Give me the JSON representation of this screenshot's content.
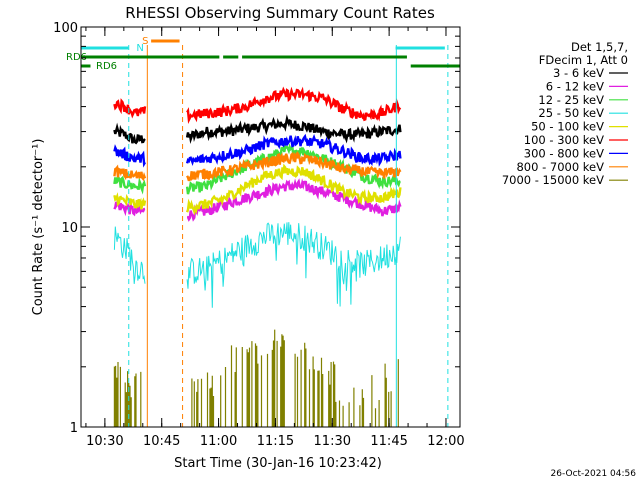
{
  "chart_data": {
    "type": "line",
    "title": "RHESSI Observing Summary Count Rates",
    "xlabel": "Start Time (30-Jan-16 10:23:42)",
    "ylabel": "Count Rate (s⁻¹ detector⁻¹)",
    "y_scale": "log",
    "ylim": [
      1,
      100
    ],
    "xlim_minutes": [
      0,
      100
    ],
    "x_tick_labels": [
      "10:30",
      "10:45",
      "11:00",
      "11:15",
      "11:30",
      "11:45",
      "12:00"
    ],
    "x_tick_minutes": [
      6.3,
      21.3,
      36.3,
      51.3,
      66.3,
      81.3,
      96.3
    ],
    "y_tick_labels": [
      "1",
      "10",
      "100"
    ],
    "y_tick_values": [
      1,
      10,
      100
    ],
    "legend_header": [
      "Det 1,5,7,",
      "FDecim 1, Att 0"
    ],
    "legend_position": "right",
    "footer_timestamp": "26-Oct-2021 04:56",
    "data_segments": [
      [
        8.8,
        17.0
      ],
      [
        28.0,
        84.5
      ]
    ],
    "series": [
      {
        "name": "3 - 6 keV",
        "color": "#000000",
        "seg1": [
          30,
          29,
          27,
          28
        ],
        "seg2": [
          28,
          30,
          30,
          31,
          32,
          33,
          32,
          30,
          29,
          29,
          30,
          31
        ]
      },
      {
        "name": "6 - 12 keV",
        "color": "#e020e0",
        "seg1": [
          13,
          12.5,
          12,
          12
        ],
        "seg2": [
          11.5,
          12,
          13,
          14,
          15,
          16,
          16,
          15,
          14,
          13,
          12,
          12.5
        ]
      },
      {
        "name": "12 - 25 keV",
        "color": "#40e040",
        "seg1": [
          17,
          16.5,
          16,
          16
        ],
        "seg2": [
          15.5,
          16,
          18,
          20,
          22,
          24,
          24,
          22,
          20,
          18,
          17,
          17
        ]
      },
      {
        "name": "25 - 50 keV",
        "color": "#20e0e0",
        "seg1": [
          9,
          8,
          6.5,
          6
        ],
        "seg2": [
          6,
          6.2,
          7,
          8,
          9,
          9.5,
          9,
          8,
          7,
          6.5,
          7,
          8
        ]
      },
      {
        "name": "50 - 100 keV",
        "color": "#e0e000",
        "seg1": [
          14,
          13.5,
          13,
          13
        ],
        "seg2": [
          12.5,
          13,
          14,
          16,
          18,
          19,
          19,
          17,
          15,
          14,
          14,
          15
        ]
      },
      {
        "name": "100 - 300 keV",
        "color": "#ff0000",
        "seg1": [
          42,
          40,
          37,
          38
        ],
        "seg2": [
          36,
          37,
          38,
          40,
          44,
          46,
          46,
          44,
          39,
          36,
          37,
          41
        ]
      },
      {
        "name": "300 - 800 keV",
        "color": "#0000ff",
        "seg1": [
          24,
          23,
          22,
          22
        ],
        "seg2": [
          21,
          22,
          23,
          24,
          26,
          27,
          27,
          26,
          24,
          22,
          22,
          23
        ]
      },
      {
        "name": "800 - 7000 keV",
        "color": "#ff8000",
        "seg1": [
          19,
          18.5,
          18,
          18
        ],
        "seg2": [
          18,
          18.5,
          19,
          20,
          21,
          22,
          22,
          21,
          19.5,
          19,
          18.5,
          19
        ]
      },
      {
        "name": "7000 - 15000 keV",
        "color": "#808000",
        "seg1": [
          1.3,
          1.4,
          1.3,
          1.2
        ],
        "seg2": [
          1.1,
          1.2,
          1.6,
          1.8,
          2.0,
          1.9,
          1.7,
          1.5,
          1.2,
          1.1,
          1.3,
          1.4
        ]
      }
    ],
    "flags": [
      {
        "label": "RD6",
        "color": "#008000",
        "row": 1,
        "segments": [
          [
            0.0,
            36.5
          ],
          [
            37.5,
            41.5
          ],
          [
            42.5,
            86.0
          ]
        ]
      },
      {
        "label": "RD6",
        "color": "#008000",
        "row": 2,
        "segments": [
          [
            0.0,
            2.5
          ],
          [
            87.0,
            100.0
          ]
        ]
      },
      {
        "label": "S",
        "color": "#ff8000",
        "row": 0,
        "segments": [
          [
            18.5,
            26.0
          ]
        ]
      },
      {
        "label": "N",
        "color": "#20e0e0",
        "row": 0,
        "segments": [
          [
            0.0,
            12.5
          ],
          [
            83.0,
            96.0
          ]
        ]
      }
    ],
    "vertical_lines": [
      {
        "x": 12.6,
        "color": "#20e0e0",
        "style": "dashed"
      },
      {
        "x": 17.5,
        "color": "#ff8000",
        "style": "solid"
      },
      {
        "x": 26.8,
        "color": "#ff8000",
        "style": "dashed"
      },
      {
        "x": 83.2,
        "color": "#20e0e0",
        "style": "solid"
      },
      {
        "x": 96.8,
        "color": "#20e0e0",
        "style": "dashed"
      }
    ]
  }
}
